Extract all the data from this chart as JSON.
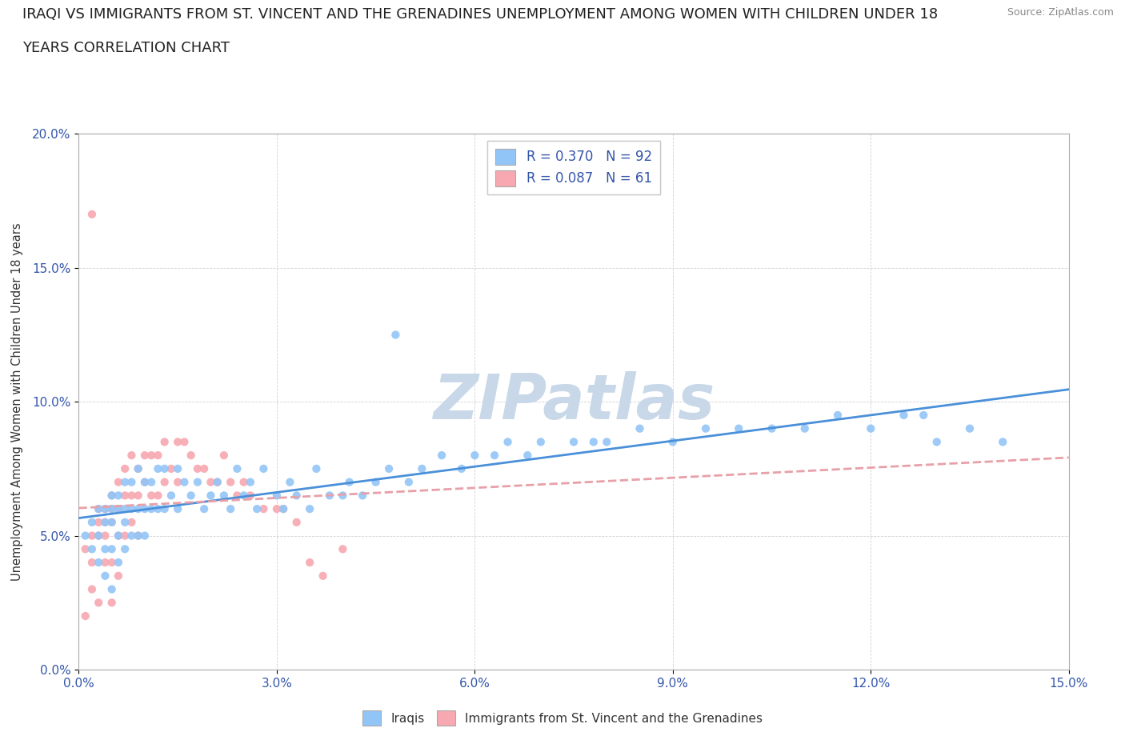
{
  "title_line1": "IRAQI VS IMMIGRANTS FROM ST. VINCENT AND THE GRENADINES UNEMPLOYMENT AMONG WOMEN WITH CHILDREN UNDER 18",
  "title_line2": "YEARS CORRELATION CHART",
  "source": "Source: ZipAtlas.com",
  "ylabel": "Unemployment Among Women with Children Under 18 years",
  "xlim": [
    0.0,
    0.15
  ],
  "ylim": [
    0.0,
    0.2
  ],
  "xticks": [
    0.0,
    0.03,
    0.06,
    0.09,
    0.12,
    0.15
  ],
  "yticks": [
    0.0,
    0.05,
    0.1,
    0.15,
    0.2
  ],
  "xticklabels": [
    "0.0%",
    "3.0%",
    "6.0%",
    "9.0%",
    "12.0%",
    "15.0%"
  ],
  "yticklabels": [
    "0.0%",
    "5.0%",
    "10.0%",
    "15.0%",
    "20.0%"
  ],
  "iraqis_color": "#92c5f7",
  "svg_color": "#f7a8b0",
  "iraqis_R": 0.37,
  "iraqis_N": 92,
  "svg_R": 0.087,
  "svg_N": 61,
  "iraqis_line_color": "#4a90d9",
  "svg_line_color": "#e8a0a8",
  "legend_label_iraqis": "Iraqis",
  "legend_label_svg": "Immigrants from St. Vincent and the Grenadines",
  "watermark": "ZIPatlas",
  "watermark_color": "#c8d8e8",
  "title_fontsize": 13,
  "axis_label_fontsize": 10.5,
  "tick_fontsize": 11,
  "tick_color": "#3355aa",
  "iraqis_x": [
    0.001,
    0.002,
    0.002,
    0.003,
    0.003,
    0.003,
    0.004,
    0.004,
    0.004,
    0.004,
    0.005,
    0.005,
    0.005,
    0.005,
    0.005,
    0.006,
    0.006,
    0.006,
    0.006,
    0.007,
    0.007,
    0.007,
    0.007,
    0.008,
    0.008,
    0.008,
    0.009,
    0.009,
    0.009,
    0.01,
    0.01,
    0.01,
    0.011,
    0.011,
    0.012,
    0.012,
    0.013,
    0.013,
    0.014,
    0.015,
    0.015,
    0.016,
    0.017,
    0.018,
    0.019,
    0.02,
    0.021,
    0.022,
    0.023,
    0.024,
    0.025,
    0.026,
    0.027,
    0.028,
    0.03,
    0.031,
    0.032,
    0.033,
    0.035,
    0.036,
    0.038,
    0.04,
    0.041,
    0.043,
    0.045,
    0.047,
    0.05,
    0.052,
    0.055,
    0.058,
    0.06,
    0.063,
    0.065,
    0.068,
    0.07,
    0.075,
    0.08,
    0.085,
    0.09,
    0.095,
    0.1,
    0.105,
    0.11,
    0.115,
    0.12,
    0.125,
    0.128,
    0.13,
    0.135,
    0.14,
    0.078,
    0.048
  ],
  "iraqis_y": [
    0.05,
    0.045,
    0.055,
    0.04,
    0.05,
    0.06,
    0.035,
    0.045,
    0.055,
    0.06,
    0.03,
    0.045,
    0.055,
    0.06,
    0.065,
    0.04,
    0.05,
    0.06,
    0.065,
    0.045,
    0.055,
    0.06,
    0.07,
    0.05,
    0.06,
    0.07,
    0.05,
    0.06,
    0.075,
    0.05,
    0.06,
    0.07,
    0.06,
    0.07,
    0.06,
    0.075,
    0.06,
    0.075,
    0.065,
    0.06,
    0.075,
    0.07,
    0.065,
    0.07,
    0.06,
    0.065,
    0.07,
    0.065,
    0.06,
    0.075,
    0.065,
    0.07,
    0.06,
    0.075,
    0.065,
    0.06,
    0.07,
    0.065,
    0.06,
    0.075,
    0.065,
    0.065,
    0.07,
    0.065,
    0.07,
    0.075,
    0.07,
    0.075,
    0.08,
    0.075,
    0.08,
    0.08,
    0.085,
    0.08,
    0.085,
    0.085,
    0.085,
    0.09,
    0.085,
    0.09,
    0.09,
    0.09,
    0.09,
    0.095,
    0.09,
    0.095,
    0.095,
    0.085,
    0.09,
    0.085,
    0.085,
    0.125
  ],
  "svg_x": [
    0.001,
    0.001,
    0.002,
    0.002,
    0.002,
    0.003,
    0.003,
    0.003,
    0.003,
    0.004,
    0.004,
    0.004,
    0.004,
    0.005,
    0.005,
    0.005,
    0.005,
    0.005,
    0.006,
    0.006,
    0.006,
    0.006,
    0.007,
    0.007,
    0.007,
    0.008,
    0.008,
    0.008,
    0.009,
    0.009,
    0.009,
    0.01,
    0.01,
    0.011,
    0.011,
    0.012,
    0.012,
    0.013,
    0.013,
    0.014,
    0.015,
    0.015,
    0.016,
    0.017,
    0.018,
    0.019,
    0.02,
    0.021,
    0.022,
    0.023,
    0.024,
    0.025,
    0.026,
    0.028,
    0.03,
    0.031,
    0.033,
    0.035,
    0.037,
    0.04,
    0.002
  ],
  "svg_y": [
    0.045,
    0.02,
    0.05,
    0.04,
    0.03,
    0.06,
    0.055,
    0.05,
    0.025,
    0.06,
    0.055,
    0.05,
    0.04,
    0.065,
    0.06,
    0.055,
    0.04,
    0.025,
    0.07,
    0.06,
    0.05,
    0.035,
    0.075,
    0.065,
    0.05,
    0.08,
    0.065,
    0.055,
    0.075,
    0.065,
    0.05,
    0.08,
    0.07,
    0.08,
    0.065,
    0.08,
    0.065,
    0.085,
    0.07,
    0.075,
    0.085,
    0.07,
    0.085,
    0.08,
    0.075,
    0.075,
    0.07,
    0.07,
    0.08,
    0.07,
    0.065,
    0.07,
    0.065,
    0.06,
    0.06,
    0.06,
    0.055,
    0.04,
    0.035,
    0.045,
    0.17
  ]
}
